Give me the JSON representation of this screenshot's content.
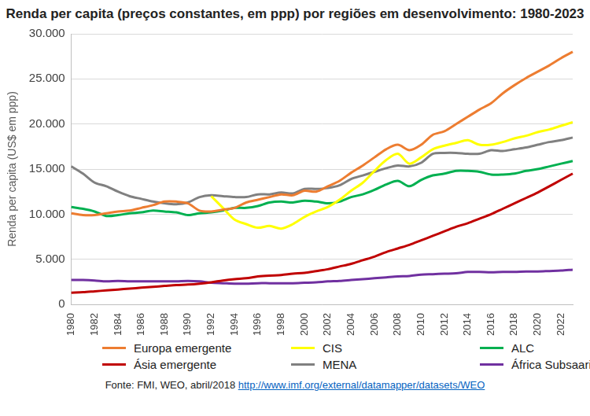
{
  "chart_data": {
    "type": "line",
    "title": "Renda per capita (preços constantes, em ppp) por regiões em desenvolvimento: 1980-2023",
    "y_label": "Renda per capita (US$ em ppp)",
    "source": "Fonte: FMI, WEO, abril/2018 http://www.imf.org/external/datamapper/datasets/WEO",
    "categories": [
      "1980",
      null,
      "1982",
      null,
      "1984",
      null,
      "1986",
      null,
      "1988",
      null,
      "1990",
      null,
      "1992",
      null,
      "1994",
      null,
      "1996",
      null,
      "1998",
      null,
      "2000",
      null,
      "2002",
      null,
      "2004",
      null,
      "2006",
      null,
      "2008",
      null,
      "2010",
      null,
      "2012",
      null,
      "2014",
      null,
      "2016",
      null,
      "2018",
      null,
      "2020",
      null,
      "2022",
      null
    ],
    "series": [
      {
        "name": "Europa emergente",
        "color": "#ed7d31",
        "values": [
          10100,
          9900,
          9900,
          10100,
          10300,
          10400,
          10700,
          11000,
          11400,
          11400,
          11200,
          10400,
          10300,
          10500,
          10700,
          11300,
          11600,
          11900,
          12200,
          12100,
          12600,
          12500,
          13100,
          13700,
          14600,
          15400,
          16300,
          17200,
          17700,
          17100,
          17700,
          18800,
          19200,
          20000,
          20800,
          21600,
          22300,
          23400,
          24300,
          25100,
          25800,
          26500,
          27300,
          28000
        ]
      },
      {
        "name": "CIS",
        "color": "#ffff00",
        "values": [
          null,
          null,
          null,
          null,
          null,
          null,
          null,
          null,
          null,
          null,
          null,
          null,
          12000,
          10700,
          9400,
          8900,
          8500,
          8700,
          8400,
          8900,
          9700,
          10300,
          10800,
          11600,
          12600,
          13500,
          14800,
          16000,
          16700,
          15600,
          16300,
          17200,
          17600,
          17900,
          18200,
          17700,
          17700,
          18000,
          18400,
          18700,
          19100,
          19400,
          19800,
          20200
        ]
      },
      {
        "name": "ALC",
        "color": "#00b050",
        "values": [
          10800,
          10600,
          10300,
          9800,
          9900,
          10100,
          10200,
          10400,
          10300,
          10200,
          9900,
          10100,
          10200,
          10400,
          10700,
          10700,
          10900,
          11300,
          11400,
          11300,
          11500,
          11400,
          11200,
          11400,
          11900,
          12200,
          12700,
          13300,
          13700,
          13100,
          13800,
          14300,
          14500,
          14800,
          14800,
          14700,
          14400,
          14400,
          14500,
          14800,
          15000,
          15300,
          15600,
          15900
        ]
      },
      {
        "name": "Ásia emergente",
        "color": "#c00000",
        "values": [
          1300,
          1350,
          1450,
          1550,
          1650,
          1750,
          1850,
          1950,
          2050,
          2150,
          2200,
          2300,
          2450,
          2650,
          2800,
          2900,
          3100,
          3200,
          3250,
          3400,
          3500,
          3700,
          3900,
          4200,
          4500,
          4900,
          5300,
          5800,
          6200,
          6600,
          7100,
          7600,
          8100,
          8600,
          9000,
          9500,
          10000,
          10600,
          11200,
          11800,
          12400,
          13100,
          13800,
          14500
        ]
      },
      {
        "name": "MENA",
        "color": "#808080",
        "values": [
          15300,
          14500,
          13500,
          13100,
          12500,
          12000,
          11700,
          11400,
          11200,
          11100,
          11300,
          11900,
          12100,
          12000,
          11900,
          11900,
          12200,
          12200,
          12400,
          12300,
          12800,
          12800,
          12900,
          13200,
          13900,
          14300,
          14700,
          15100,
          15400,
          15300,
          15700,
          16700,
          16800,
          16800,
          16700,
          16700,
          17100,
          17000,
          17200,
          17400,
          17700,
          18000,
          18200,
          18500
        ]
      },
      {
        "name": "África Subsaariana",
        "color": "#7030a0",
        "values": [
          2700,
          2700,
          2650,
          2550,
          2600,
          2550,
          2550,
          2550,
          2550,
          2550,
          2600,
          2550,
          2400,
          2350,
          2300,
          2300,
          2350,
          2350,
          2350,
          2350,
          2400,
          2450,
          2550,
          2600,
          2700,
          2800,
          2900,
          3000,
          3100,
          3150,
          3300,
          3350,
          3400,
          3450,
          3600,
          3600,
          3550,
          3600,
          3600,
          3650,
          3650,
          3700,
          3750,
          3850
        ]
      }
    ],
    "ylim": [
      0,
      30000
    ],
    "yticks": [
      0,
      {
        "value": 5000,
        "label": "5.000"
      },
      {
        "value": 10000,
        "label": "10.000"
      },
      {
        "value": 15000,
        "label": "15.000"
      },
      {
        "value": 20000,
        "label": "20.000"
      },
      {
        "value": 25000,
        "label": "25.000"
      },
      {
        "value": 30000,
        "label": "30.000"
      }
    ],
    "grid": true,
    "legend": "bottom"
  }
}
